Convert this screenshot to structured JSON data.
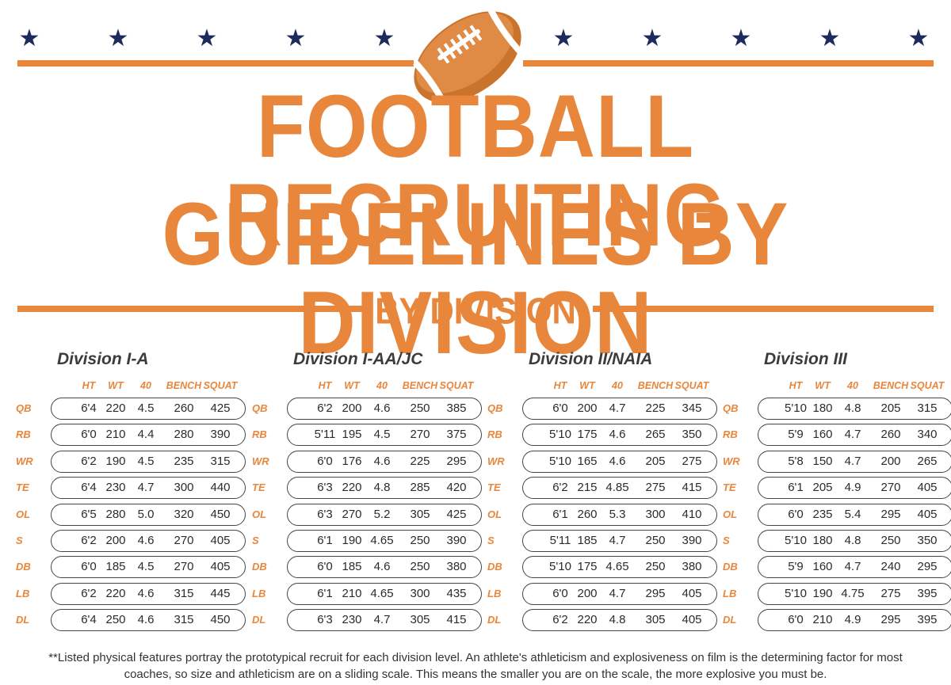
{
  "decor": {
    "star_icon": "star-icon",
    "football_icon": "football-icon",
    "accent_color": "#e8863c",
    "star_color": "#1f2a5c"
  },
  "header": {
    "title_line1": "FOOTBALL RECRUITING",
    "title_line2": "GUIDELINES BY DIVISION",
    "subtitle": "BY DIVISION"
  },
  "columns": [
    "HT",
    "WT",
    "40",
    "BENCH",
    "SQUAT"
  ],
  "divisions": [
    {
      "name": "Division I-A",
      "rows": [
        {
          "pos": "QB",
          "ht": "6'4",
          "wt": "220",
          "forty": "4.5",
          "bench": "260",
          "squat": "425"
        },
        {
          "pos": "RB",
          "ht": "6'0",
          "wt": "210",
          "forty": "4.4",
          "bench": "280",
          "squat": "390"
        },
        {
          "pos": "WR",
          "ht": "6'2",
          "wt": "190",
          "forty": "4.5",
          "bench": "235",
          "squat": "315"
        },
        {
          "pos": "TE",
          "ht": "6'4",
          "wt": "230",
          "forty": "4.7",
          "bench": "300",
          "squat": "440"
        },
        {
          "pos": "OL",
          "ht": "6'5",
          "wt": "280",
          "forty": "5.0",
          "bench": "320",
          "squat": "450"
        },
        {
          "pos": "S",
          "ht": "6'2",
          "wt": "200",
          "forty": "4.6",
          "bench": "270",
          "squat": "405"
        },
        {
          "pos": "DB",
          "ht": "6'0",
          "wt": "185",
          "forty": "4.5",
          "bench": "270",
          "squat": "405"
        },
        {
          "pos": "LB",
          "ht": "6'2",
          "wt": "220",
          "forty": "4.6",
          "bench": "315",
          "squat": "445"
        },
        {
          "pos": "DL",
          "ht": "6'4",
          "wt": "250",
          "forty": "4.6",
          "bench": "315",
          "squat": "450"
        }
      ]
    },
    {
      "name": "Division I-AA/JC",
      "rows": [
        {
          "pos": "QB",
          "ht": "6'2",
          "wt": "200",
          "forty": "4.6",
          "bench": "250",
          "squat": "385"
        },
        {
          "pos": "RB",
          "ht": "5'11",
          "wt": "195",
          "forty": "4.5",
          "bench": "270",
          "squat": "375"
        },
        {
          "pos": "WR",
          "ht": "6'0",
          "wt": "176",
          "forty": "4.6",
          "bench": "225",
          "squat": "295"
        },
        {
          "pos": "TE",
          "ht": "6'3",
          "wt": "220",
          "forty": "4.8",
          "bench": "285",
          "squat": "420"
        },
        {
          "pos": "OL",
          "ht": "6'3",
          "wt": "270",
          "forty": "5.2",
          "bench": "305",
          "squat": "425"
        },
        {
          "pos": "S",
          "ht": "6'1",
          "wt": "190",
          "forty": "4.65",
          "bench": "250",
          "squat": "390"
        },
        {
          "pos": "DB",
          "ht": "6'0",
          "wt": "185",
          "forty": "4.6",
          "bench": "250",
          "squat": "380"
        },
        {
          "pos": "LB",
          "ht": "6'1",
          "wt": "210",
          "forty": "4.65",
          "bench": "300",
          "squat": "435"
        },
        {
          "pos": "DL",
          "ht": "6'3",
          "wt": "230",
          "forty": "4.7",
          "bench": "305",
          "squat": "415"
        }
      ]
    },
    {
      "name": "Division II/NAIA",
      "rows": [
        {
          "pos": "QB",
          "ht": "6'0",
          "wt": "200",
          "forty": "4.7",
          "bench": "225",
          "squat": "345"
        },
        {
          "pos": "RB",
          "ht": "5'10",
          "wt": "175",
          "forty": "4.6",
          "bench": "265",
          "squat": "350"
        },
        {
          "pos": "WR",
          "ht": "5'10",
          "wt": "165",
          "forty": "4.6",
          "bench": "205",
          "squat": "275"
        },
        {
          "pos": "TE",
          "ht": "6'2",
          "wt": "215",
          "forty": "4.85",
          "bench": "275",
          "squat": "415"
        },
        {
          "pos": "OL",
          "ht": "6'1",
          "wt": "260",
          "forty": "5.3",
          "bench": "300",
          "squat": "410"
        },
        {
          "pos": "S",
          "ht": "5'11",
          "wt": "185",
          "forty": "4.7",
          "bench": "250",
          "squat": "390"
        },
        {
          "pos": "DB",
          "ht": "5'10",
          "wt": "175",
          "forty": "4.65",
          "bench": "250",
          "squat": "380"
        },
        {
          "pos": "LB",
          "ht": "6'0",
          "wt": "200",
          "forty": "4.7",
          "bench": "295",
          "squat": "405"
        },
        {
          "pos": "DL",
          "ht": "6'2",
          "wt": "220",
          "forty": "4.8",
          "bench": "305",
          "squat": "405"
        }
      ]
    },
    {
      "name": "Division III",
      "rows": [
        {
          "pos": "QB",
          "ht": "5'10",
          "wt": "180",
          "forty": "4.8",
          "bench": "205",
          "squat": "315"
        },
        {
          "pos": "RB",
          "ht": "5'9",
          "wt": "160",
          "forty": "4.7",
          "bench": "260",
          "squat": "340"
        },
        {
          "pos": "WR",
          "ht": "5'8",
          "wt": "150",
          "forty": "4.7",
          "bench": "200",
          "squat": "265"
        },
        {
          "pos": "TE",
          "ht": "6'1",
          "wt": "205",
          "forty": "4.9",
          "bench": "270",
          "squat": "405"
        },
        {
          "pos": "OL",
          "ht": "6'0",
          "wt": "235",
          "forty": "5.4",
          "bench": "295",
          "squat": "405"
        },
        {
          "pos": "S",
          "ht": "5'10",
          "wt": "180",
          "forty": "4.8",
          "bench": "250",
          "squat": "350"
        },
        {
          "pos": "DB",
          "ht": "5'9",
          "wt": "160",
          "forty": "4.7",
          "bench": "240",
          "squat": "295"
        },
        {
          "pos": "LB",
          "ht": "5'10",
          "wt": "190",
          "forty": "4.75",
          "bench": "275",
          "squat": "395"
        },
        {
          "pos": "DL",
          "ht": "6'0",
          "wt": "210",
          "forty": "4.9",
          "bench": "295",
          "squat": "395"
        }
      ]
    }
  ],
  "footnote": {
    "line1": "**Listed physical features portray the prototypical recruit for each division level.  An athlete's athleticism and explosiveness on film is the determining factor for most",
    "line2": "coaches, so size and athleticism are on a sliding scale. This means the smaller you are on the scale, the more explosive you must be."
  }
}
